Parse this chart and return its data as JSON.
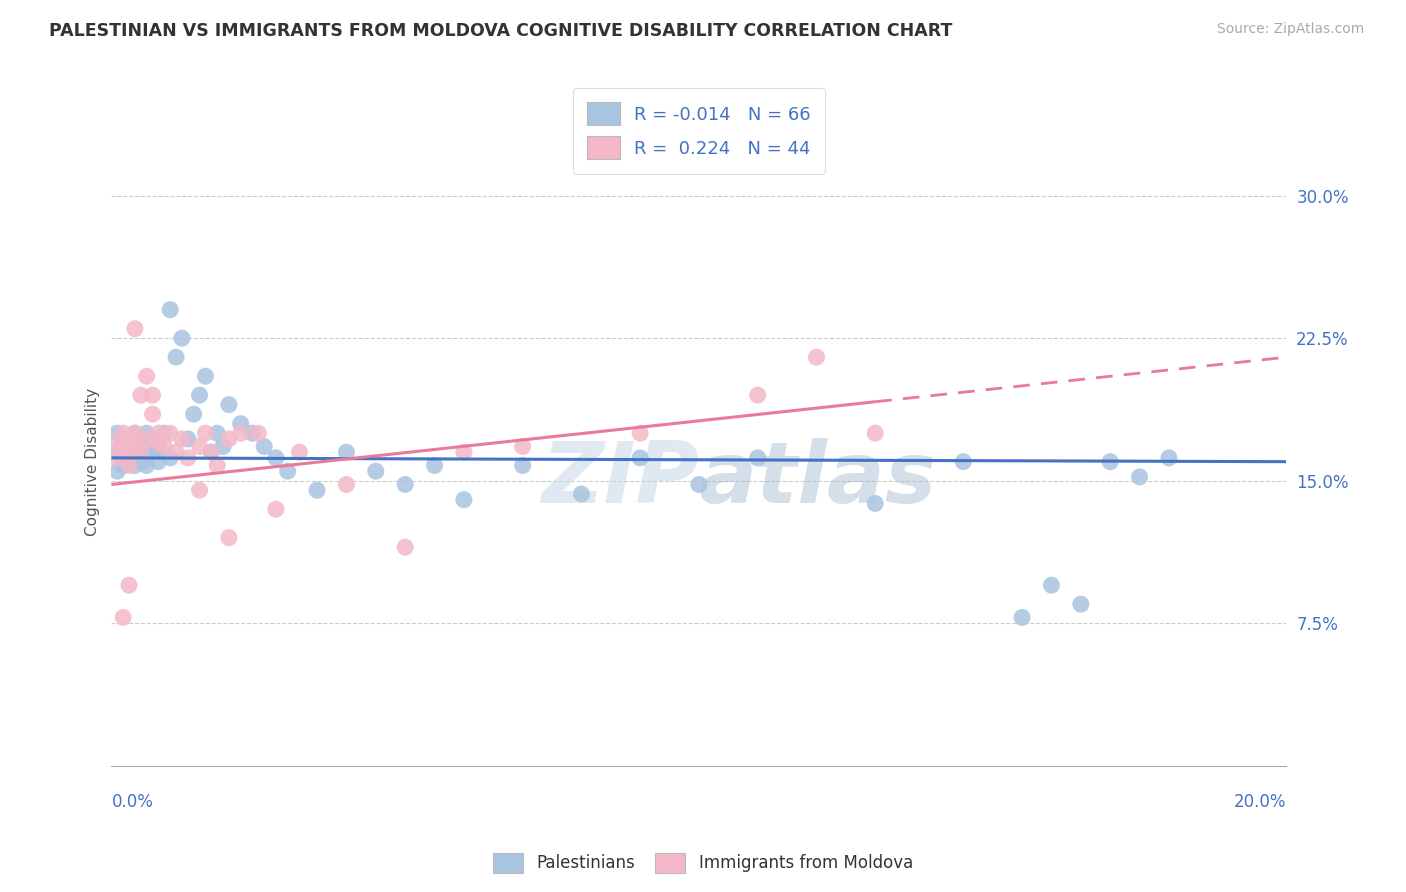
{
  "title": "PALESTINIAN VS IMMIGRANTS FROM MOLDOVA COGNITIVE DISABILITY CORRELATION CHART",
  "source": "Source: ZipAtlas.com",
  "ylabel": "Cognitive Disability",
  "legend1_label": "Palestinians",
  "legend2_label": "Immigrants from Moldova",
  "blue_color": "#a8c4e0",
  "pink_color": "#f4b8c8",
  "trendline_blue": "#4472c4",
  "trendline_pink": "#e87a9a",
  "watermark": "ZIPAtlas",
  "xlim": [
    0.0,
    0.2
  ],
  "ylim": [
    0.0,
    0.32
  ],
  "yticks": [
    0.075,
    0.15,
    0.225,
    0.3
  ],
  "ytick_labels": [
    "7.5%",
    "15.0%",
    "22.5%",
    "30.0%"
  ],
  "blue_trendline_y0": 0.162,
  "blue_trendline_y1": 0.16,
  "pink_trendline_y0": 0.148,
  "pink_trendline_y1": 0.215,
  "blue_points_x": [
    0.001,
    0.001,
    0.001,
    0.002,
    0.002,
    0.002,
    0.002,
    0.003,
    0.003,
    0.003,
    0.003,
    0.003,
    0.004,
    0.004,
    0.004,
    0.004,
    0.005,
    0.005,
    0.005,
    0.005,
    0.005,
    0.006,
    0.006,
    0.006,
    0.007,
    0.007,
    0.007,
    0.008,
    0.008,
    0.009,
    0.01,
    0.01,
    0.011,
    0.012,
    0.013,
    0.014,
    0.015,
    0.016,
    0.017,
    0.018,
    0.019,
    0.02,
    0.022,
    0.024,
    0.026,
    0.028,
    0.03,
    0.035,
    0.04,
    0.045,
    0.05,
    0.055,
    0.06,
    0.07,
    0.08,
    0.09,
    0.1,
    0.11,
    0.13,
    0.145,
    0.155,
    0.16,
    0.165,
    0.17,
    0.175,
    0.18
  ],
  "blue_points_y": [
    0.175,
    0.165,
    0.155,
    0.17,
    0.162,
    0.168,
    0.158,
    0.163,
    0.172,
    0.165,
    0.17,
    0.16,
    0.168,
    0.175,
    0.162,
    0.158,
    0.17,
    0.165,
    0.172,
    0.16,
    0.168,
    0.175,
    0.162,
    0.158,
    0.172,
    0.165,
    0.17,
    0.16,
    0.168,
    0.175,
    0.24,
    0.162,
    0.215,
    0.225,
    0.172,
    0.185,
    0.195,
    0.205,
    0.165,
    0.175,
    0.168,
    0.19,
    0.18,
    0.175,
    0.168,
    0.162,
    0.155,
    0.145,
    0.165,
    0.155,
    0.148,
    0.158,
    0.14,
    0.158,
    0.143,
    0.162,
    0.148,
    0.162,
    0.138,
    0.16,
    0.078,
    0.095,
    0.085,
    0.16,
    0.152,
    0.162
  ],
  "pink_points_x": [
    0.001,
    0.001,
    0.002,
    0.002,
    0.003,
    0.003,
    0.003,
    0.004,
    0.004,
    0.004,
    0.005,
    0.005,
    0.006,
    0.006,
    0.007,
    0.007,
    0.008,
    0.008,
    0.009,
    0.01,
    0.011,
    0.012,
    0.013,
    0.015,
    0.016,
    0.017,
    0.018,
    0.02,
    0.022,
    0.025,
    0.028,
    0.032,
    0.04,
    0.05,
    0.06,
    0.07,
    0.09,
    0.11,
    0.12,
    0.13,
    0.002,
    0.003,
    0.02,
    0.015
  ],
  "pink_points_y": [
    0.17,
    0.162,
    0.175,
    0.168,
    0.165,
    0.172,
    0.158,
    0.23,
    0.168,
    0.175,
    0.195,
    0.165,
    0.205,
    0.172,
    0.185,
    0.195,
    0.17,
    0.175,
    0.168,
    0.175,
    0.165,
    0.172,
    0.162,
    0.168,
    0.175,
    0.165,
    0.158,
    0.172,
    0.175,
    0.175,
    0.135,
    0.165,
    0.148,
    0.115,
    0.165,
    0.168,
    0.175,
    0.195,
    0.215,
    0.175,
    0.078,
    0.095,
    0.12,
    0.145
  ]
}
